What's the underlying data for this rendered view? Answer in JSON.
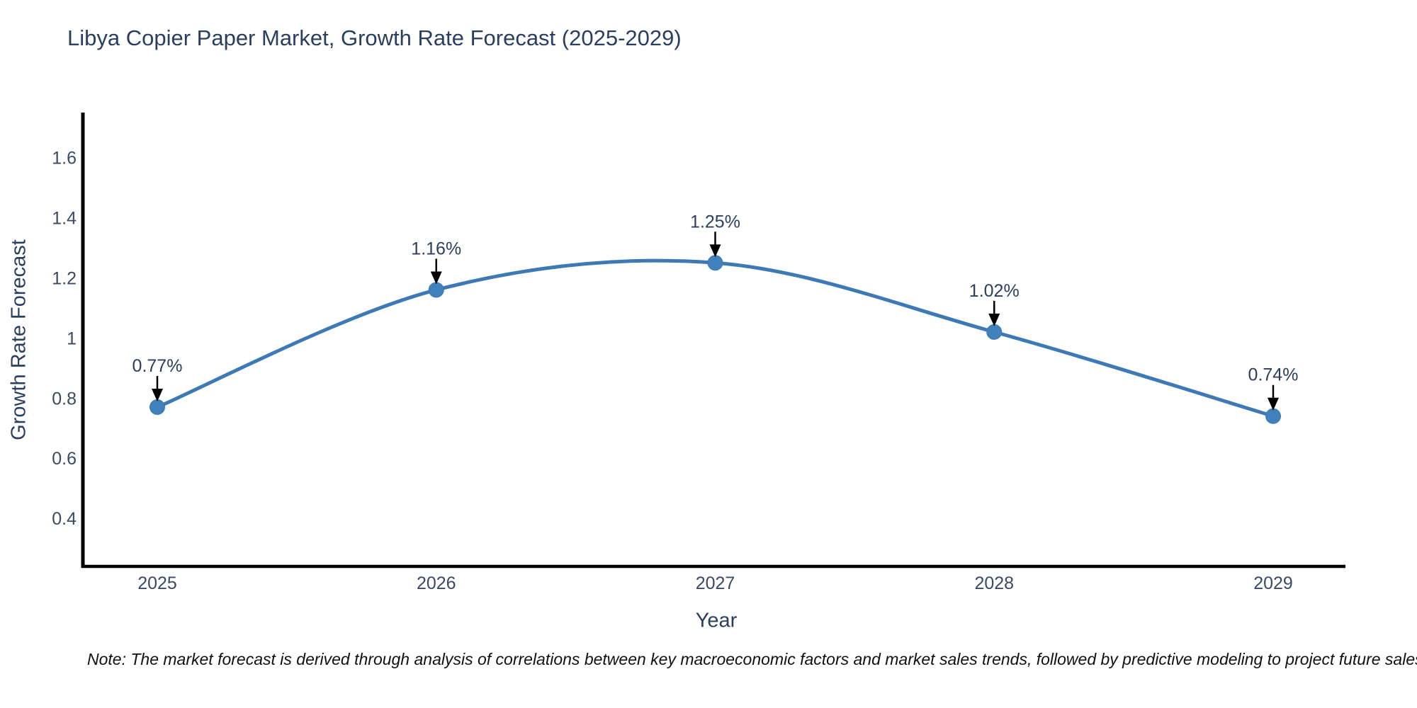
{
  "page": {
    "note": "Note: The market forecast is derived through analysis of correlations between key macroeconomic factors and market sales trends, followed by predictive modeling to project future sales"
  },
  "colors": {
    "title_text": "#2a3f5f",
    "tick_text": "#3b4a63",
    "axis_line": "#000000",
    "series_line": "#3d79b4",
    "marker_fill": "#4181bb",
    "annotation_text": "#2a3f5f",
    "annotation_arrow": "#000000",
    "note_text": "#111111",
    "background": "#ffffff"
  },
  "chart_data": {
    "type": "line",
    "title": "Libya Copier Paper Market, Growth Rate Forecast (2025-2029)",
    "xlabel": "Year",
    "ylabel": "Growth Rate Forecast",
    "categories": [
      "2025",
      "2026",
      "2027",
      "2028",
      "2029"
    ],
    "series": [
      {
        "name": "Growth Rate Forecast",
        "values": [
          0.77,
          1.16,
          1.25,
          1.02,
          0.74
        ]
      }
    ],
    "point_labels": [
      "0.77%",
      "1.16%",
      "1.25%",
      "1.02%",
      "0.74%"
    ],
    "ylim": [
      0.24,
      1.75
    ],
    "ytick_values": [
      0.4,
      0.6,
      0.8,
      1,
      1.2,
      1.4,
      1.6
    ],
    "ytick_labels": [
      "0.4",
      "0.6",
      "0.8",
      "1",
      "1.2",
      "1.4",
      "1.6"
    ],
    "grid": false,
    "legend": "none",
    "line_shape": "spline",
    "markers": true,
    "annotations": "value labels with down arrows above each point"
  }
}
